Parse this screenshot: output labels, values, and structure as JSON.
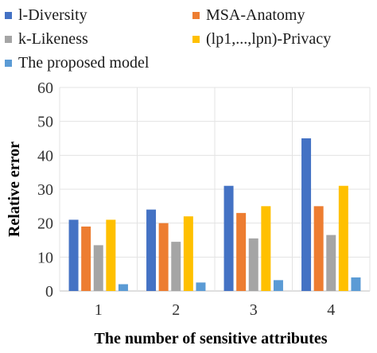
{
  "chart_data": {
    "type": "bar",
    "title": "",
    "xlabel": "The number of sensitive attributes",
    "ylabel": "Relative error",
    "categories": [
      "1",
      "2",
      "3",
      "4"
    ],
    "ylim": [
      0,
      60
    ],
    "yticks": [
      0,
      10,
      20,
      30,
      40,
      50,
      60
    ],
    "grid": true,
    "legend_position": "top",
    "series": [
      {
        "name": "l-Diversity",
        "color": "#4472C4",
        "values": [
          21,
          24,
          31,
          45
        ]
      },
      {
        "name": "MSA-Anatomy",
        "color": "#ED7D31",
        "values": [
          19,
          20,
          23,
          25
        ]
      },
      {
        "name": "k-Likeness",
        "color": "#A5A5A5",
        "values": [
          13.5,
          14.5,
          15.5,
          16.5
        ]
      },
      {
        "name": "(lp1,...,lpn)-Privacy",
        "color": "#FFC000",
        "values": [
          21,
          22,
          25,
          31
        ]
      },
      {
        "name": "The proposed model",
        "color": "#5B9BD5",
        "values": [
          2,
          2.5,
          3.2,
          4
        ]
      }
    ]
  }
}
